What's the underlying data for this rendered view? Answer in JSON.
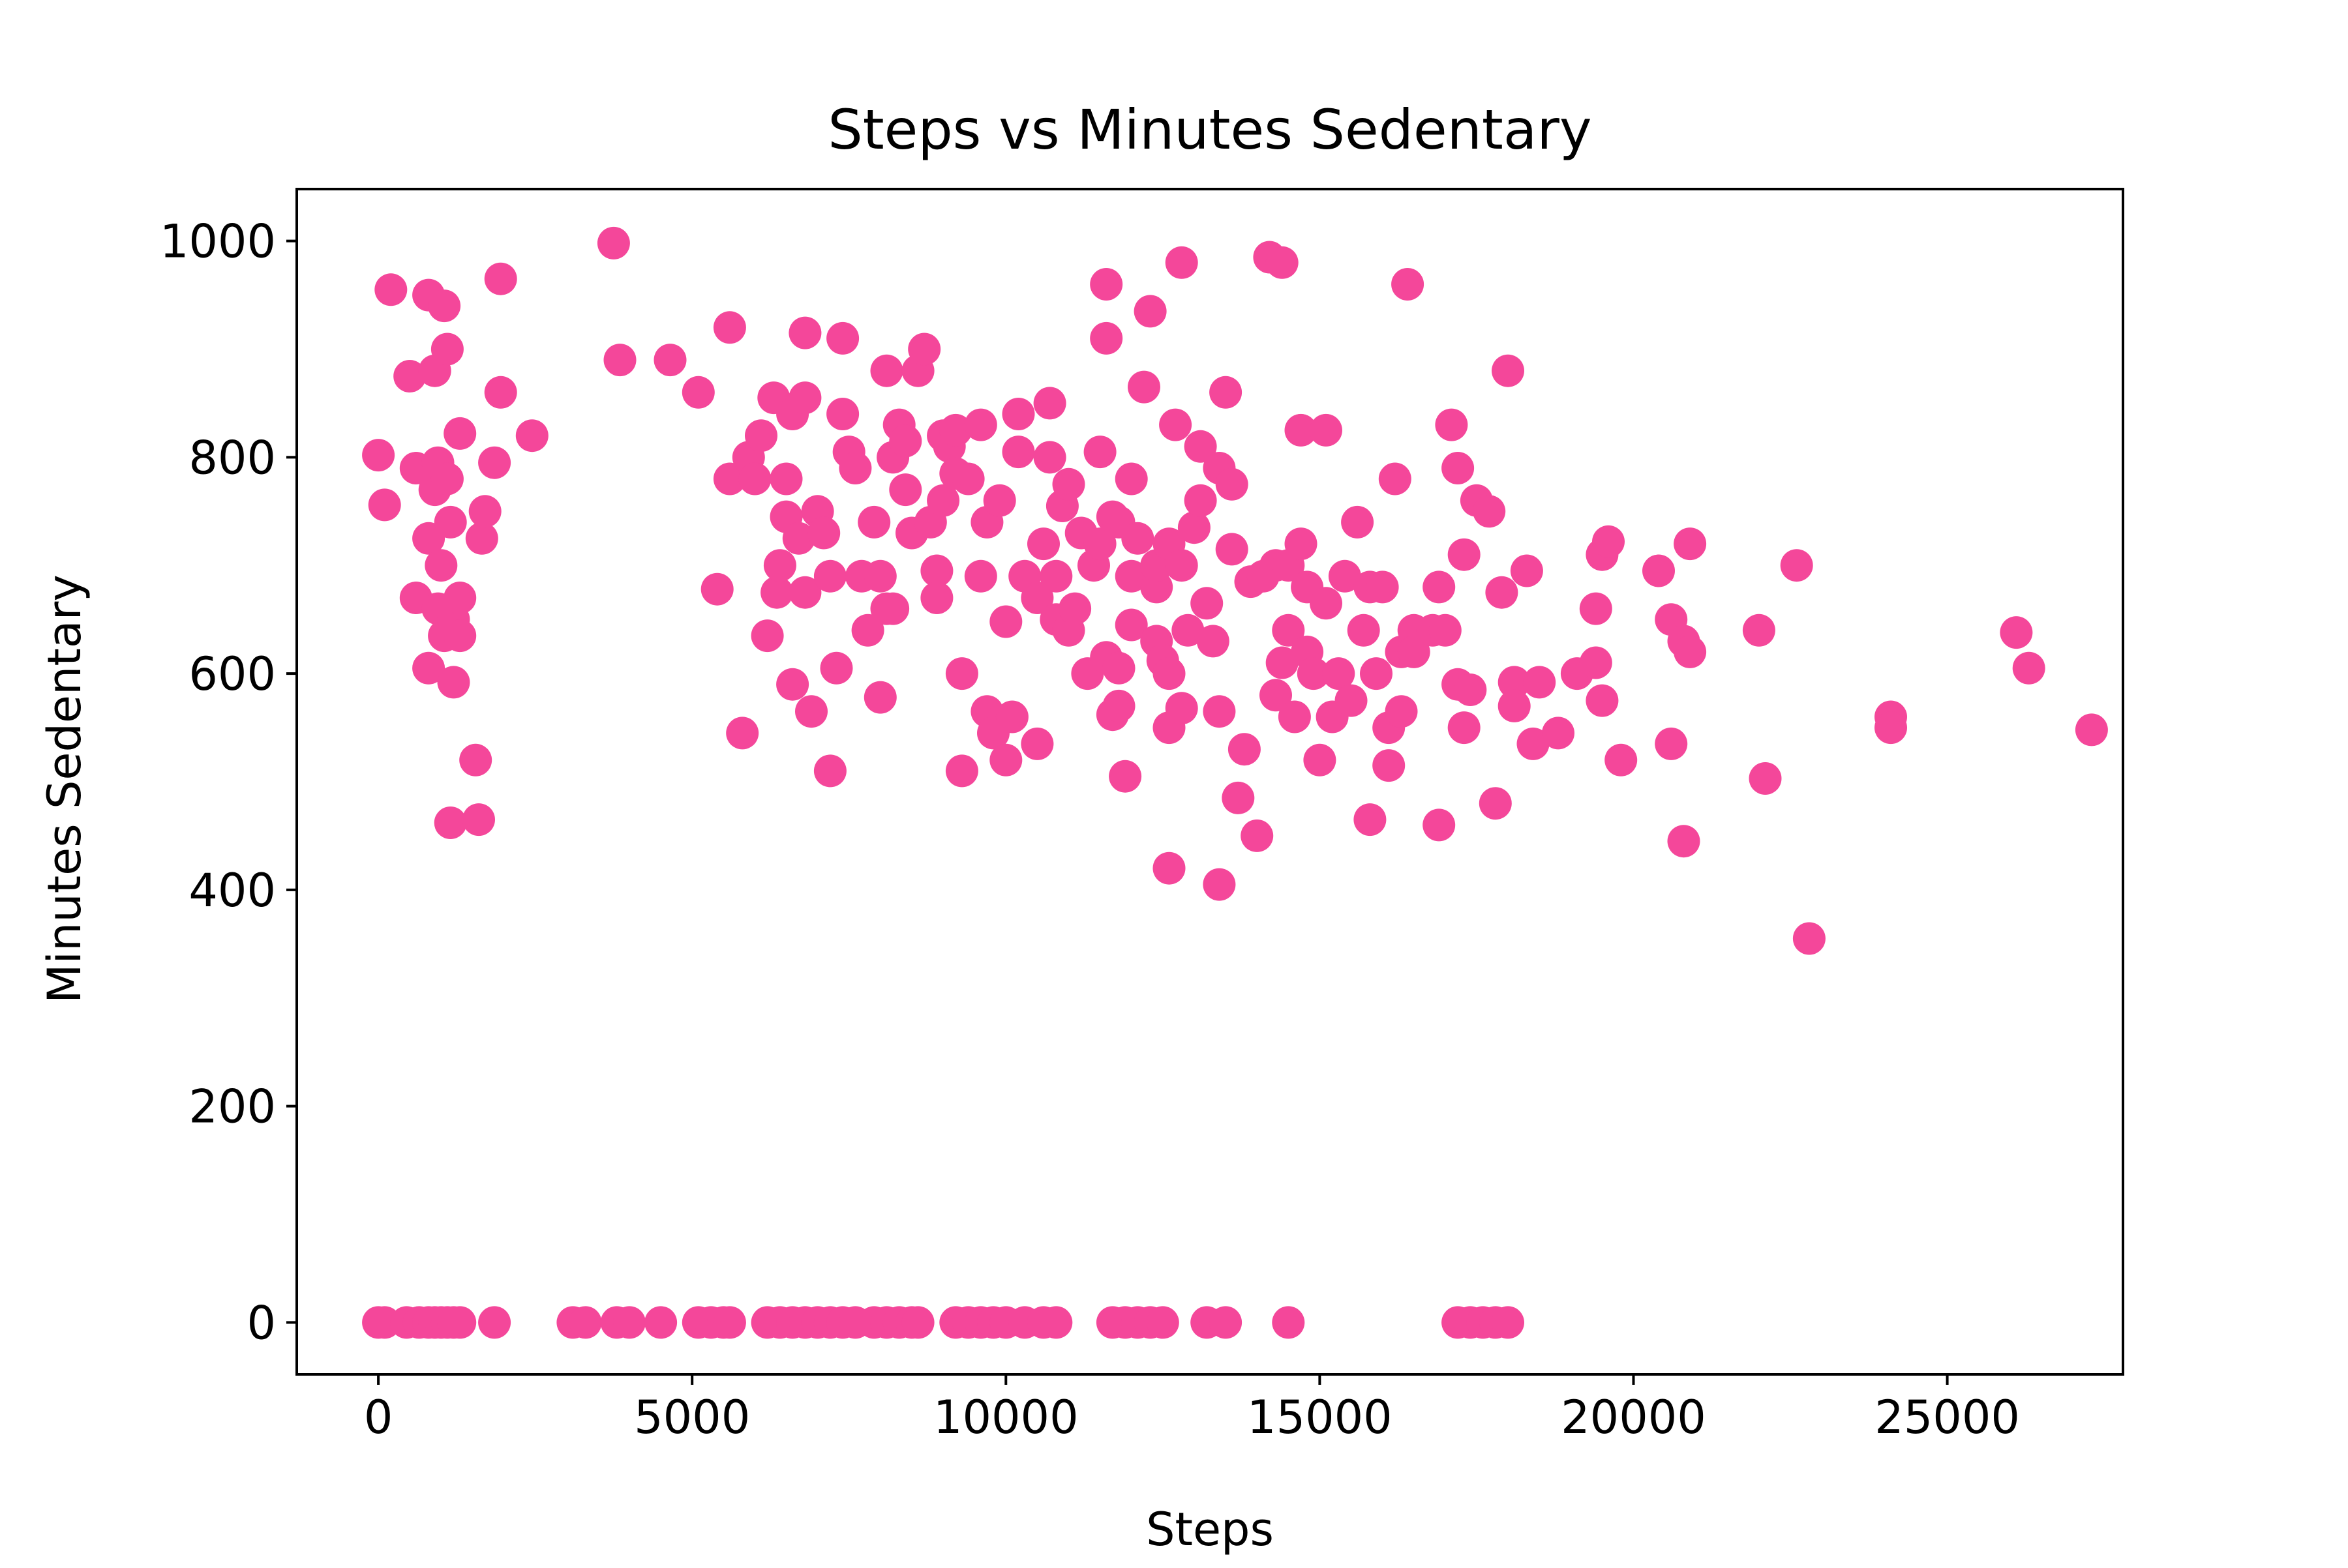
{
  "chart_data": {
    "type": "scatter",
    "title": "Steps vs Minutes Sedentary",
    "xlabel": "Steps",
    "ylabel": "Minutes Sedentary",
    "xlim": [
      -1300,
      27800
    ],
    "ylim": [
      -48,
      1048
    ],
    "xticks": [
      0,
      5000,
      10000,
      15000,
      20000,
      25000
    ],
    "yticks": [
      0,
      200,
      400,
      600,
      800,
      1000
    ],
    "grid": false,
    "legend": "none",
    "marker_color": "#f4479a",
    "series": [
      {
        "points": [
          [
            0,
            0
          ],
          [
            100,
            0
          ],
          [
            450,
            0
          ],
          [
            650,
            0
          ],
          [
            800,
            0
          ],
          [
            900,
            0
          ],
          [
            1000,
            0
          ],
          [
            1100,
            0
          ],
          [
            1200,
            0
          ],
          [
            1300,
            0
          ],
          [
            1850,
            0
          ],
          [
            3100,
            0
          ],
          [
            3300,
            0
          ],
          [
            3800,
            0
          ],
          [
            4000,
            0
          ],
          [
            4500,
            0
          ],
          [
            5100,
            0
          ],
          [
            5300,
            0
          ],
          [
            5500,
            0
          ],
          [
            5600,
            0
          ],
          [
            6200,
            0
          ],
          [
            6400,
            0
          ],
          [
            6600,
            0
          ],
          [
            6800,
            0
          ],
          [
            7000,
            0
          ],
          [
            7200,
            0
          ],
          [
            7400,
            0
          ],
          [
            7600,
            0
          ],
          [
            7900,
            0
          ],
          [
            8100,
            0
          ],
          [
            8300,
            0
          ],
          [
            8500,
            0
          ],
          [
            8600,
            0
          ],
          [
            9200,
            0
          ],
          [
            9400,
            0
          ],
          [
            9600,
            0
          ],
          [
            9800,
            0
          ],
          [
            10000,
            0
          ],
          [
            10300,
            0
          ],
          [
            10600,
            0
          ],
          [
            10800,
            0
          ],
          [
            11700,
            0
          ],
          [
            11900,
            0
          ],
          [
            12100,
            0
          ],
          [
            12300,
            0
          ],
          [
            12500,
            0
          ],
          [
            13200,
            0
          ],
          [
            13500,
            0
          ],
          [
            14500,
            0
          ],
          [
            17200,
            0
          ],
          [
            17400,
            0
          ],
          [
            17600,
            0
          ],
          [
            17800,
            0
          ],
          [
            18000,
            0
          ],
          [
            0,
            802
          ],
          [
            100,
            756
          ],
          [
            200,
            955
          ],
          [
            500,
            875
          ],
          [
            600,
            790
          ],
          [
            600,
            670
          ],
          [
            800,
            950
          ],
          [
            800,
            725
          ],
          [
            800,
            605
          ],
          [
            900,
            880
          ],
          [
            900,
            770
          ],
          [
            950,
            795
          ],
          [
            950,
            660
          ],
          [
            1000,
            700
          ],
          [
            1050,
            940
          ],
          [
            1050,
            635
          ],
          [
            1100,
            900
          ],
          [
            1100,
            780
          ],
          [
            1150,
            740
          ],
          [
            1200,
            650
          ],
          [
            1200,
            592
          ],
          [
            1150,
            462
          ],
          [
            1300,
            822
          ],
          [
            1300,
            670
          ],
          [
            1300,
            635
          ],
          [
            1550,
            520
          ],
          [
            1600,
            465
          ],
          [
            1650,
            725
          ],
          [
            1700,
            750
          ],
          [
            1850,
            795
          ],
          [
            1950,
            860
          ],
          [
            1950,
            965
          ],
          [
            2450,
            820
          ],
          [
            3750,
            998
          ],
          [
            3850,
            890
          ],
          [
            4650,
            890
          ],
          [
            5100,
            860
          ],
          [
            5400,
            678
          ],
          [
            5600,
            920
          ],
          [
            5600,
            780
          ],
          [
            5800,
            545
          ],
          [
            5900,
            800
          ],
          [
            6000,
            780
          ],
          [
            6100,
            820
          ],
          [
            6200,
            635
          ],
          [
            6300,
            855
          ],
          [
            6350,
            675
          ],
          [
            6400,
            700
          ],
          [
            6500,
            780
          ],
          [
            6500,
            745
          ],
          [
            6600,
            840
          ],
          [
            6600,
            590
          ],
          [
            6700,
            725
          ],
          [
            6800,
            855
          ],
          [
            6800,
            675
          ],
          [
            6800,
            915
          ],
          [
            6900,
            565
          ],
          [
            7000,
            750
          ],
          [
            7100,
            730
          ],
          [
            7200,
            690
          ],
          [
            7200,
            510
          ],
          [
            7300,
            605
          ],
          [
            7400,
            910
          ],
          [
            7400,
            840
          ],
          [
            7500,
            805
          ],
          [
            7600,
            790
          ],
          [
            7700,
            690
          ],
          [
            7800,
            640
          ],
          [
            7900,
            740
          ],
          [
            8000,
            578
          ],
          [
            8000,
            690
          ],
          [
            8100,
            880
          ],
          [
            8100,
            660
          ],
          [
            8200,
            800
          ],
          [
            8200,
            660
          ],
          [
            8300,
            830
          ],
          [
            8400,
            770
          ],
          [
            8400,
            815
          ],
          [
            8500,
            730
          ],
          [
            8600,
            880
          ],
          [
            8700,
            900
          ],
          [
            8800,
            740
          ],
          [
            8900,
            695
          ],
          [
            8900,
            670
          ],
          [
            9000,
            820
          ],
          [
            9000,
            760
          ],
          [
            9100,
            810
          ],
          [
            9200,
            785
          ],
          [
            9200,
            825
          ],
          [
            9300,
            510
          ],
          [
            9300,
            600
          ],
          [
            9400,
            780
          ],
          [
            9600,
            830
          ],
          [
            9600,
            690
          ],
          [
            9700,
            565
          ],
          [
            9700,
            740
          ],
          [
            9800,
            545
          ],
          [
            9900,
            760
          ],
          [
            10000,
            520
          ],
          [
            10000,
            648
          ],
          [
            10100,
            560
          ],
          [
            10200,
            840
          ],
          [
            10200,
            805
          ],
          [
            10300,
            690
          ],
          [
            10500,
            535
          ],
          [
            10500,
            670
          ],
          [
            10600,
            720
          ],
          [
            10700,
            850
          ],
          [
            10700,
            800
          ],
          [
            10800,
            650
          ],
          [
            10800,
            690
          ],
          [
            10900,
            755
          ],
          [
            11000,
            640
          ],
          [
            11000,
            775
          ],
          [
            11100,
            660
          ],
          [
            11200,
            730
          ],
          [
            11300,
            600
          ],
          [
            11400,
            700
          ],
          [
            11500,
            805
          ],
          [
            11500,
            720
          ],
          [
            11600,
            615
          ],
          [
            11600,
            960
          ],
          [
            11600,
            910
          ],
          [
            11700,
            562
          ],
          [
            11700,
            745
          ],
          [
            11800,
            740
          ],
          [
            11800,
            605
          ],
          [
            11800,
            570
          ],
          [
            11900,
            505
          ],
          [
            12000,
            780
          ],
          [
            12000,
            690
          ],
          [
            12000,
            645
          ],
          [
            12100,
            725
          ],
          [
            12200,
            865
          ],
          [
            12300,
            935
          ],
          [
            12400,
            680
          ],
          [
            12400,
            630
          ],
          [
            12400,
            700
          ],
          [
            12500,
            612
          ],
          [
            12600,
            600
          ],
          [
            12600,
            720
          ],
          [
            12600,
            550
          ],
          [
            12600,
            420
          ],
          [
            12700,
            830
          ],
          [
            12800,
            980
          ],
          [
            12800,
            700
          ],
          [
            12800,
            568
          ],
          [
            12900,
            640
          ],
          [
            13000,
            735
          ],
          [
            13100,
            810
          ],
          [
            13100,
            760
          ],
          [
            13200,
            665
          ],
          [
            13300,
            630
          ],
          [
            13400,
            790
          ],
          [
            13400,
            565
          ],
          [
            13400,
            405
          ],
          [
            13500,
            860
          ],
          [
            13600,
            775
          ],
          [
            13600,
            715
          ],
          [
            13700,
            485
          ],
          [
            13800,
            530
          ],
          [
            13900,
            685
          ],
          [
            14000,
            450
          ],
          [
            14100,
            690
          ],
          [
            14200,
            985
          ],
          [
            14300,
            580
          ],
          [
            14300,
            700
          ],
          [
            14400,
            980
          ],
          [
            14400,
            610
          ],
          [
            14500,
            640
          ],
          [
            14500,
            700
          ],
          [
            14600,
            560
          ],
          [
            14700,
            825
          ],
          [
            14700,
            720
          ],
          [
            14800,
            680
          ],
          [
            14800,
            620
          ],
          [
            14900,
            600
          ],
          [
            15000,
            520
          ],
          [
            15100,
            825
          ],
          [
            15100,
            665
          ],
          [
            15200,
            560
          ],
          [
            15300,
            600
          ],
          [
            15400,
            690
          ],
          [
            15500,
            575
          ],
          [
            15600,
            740
          ],
          [
            15700,
            640
          ],
          [
            15800,
            465
          ],
          [
            15800,
            680
          ],
          [
            15900,
            600
          ],
          [
            16000,
            680
          ],
          [
            16100,
            515
          ],
          [
            16100,
            550
          ],
          [
            16200,
            780
          ],
          [
            16300,
            620
          ],
          [
            16300,
            565
          ],
          [
            16400,
            960
          ],
          [
            16500,
            640
          ],
          [
            16500,
            620
          ],
          [
            16800,
            640
          ],
          [
            16900,
            680
          ],
          [
            16900,
            460
          ],
          [
            17000,
            640
          ],
          [
            17100,
            830
          ],
          [
            17200,
            790
          ],
          [
            17200,
            590
          ],
          [
            17300,
            550
          ],
          [
            17300,
            710
          ],
          [
            17400,
            585
          ],
          [
            17500,
            760
          ],
          [
            17700,
            750
          ],
          [
            17800,
            480
          ],
          [
            17900,
            675
          ],
          [
            18000,
            880
          ],
          [
            18100,
            592
          ],
          [
            18100,
            570
          ],
          [
            18300,
            695
          ],
          [
            18400,
            535
          ],
          [
            18500,
            592
          ],
          [
            18800,
            545
          ],
          [
            19100,
            600
          ],
          [
            19400,
            610
          ],
          [
            19400,
            660
          ],
          [
            19500,
            575
          ],
          [
            19500,
            710
          ],
          [
            19600,
            722
          ],
          [
            19800,
            520
          ],
          [
            20400,
            695
          ],
          [
            20600,
            535
          ],
          [
            20600,
            650
          ],
          [
            20800,
            630
          ],
          [
            20800,
            445
          ],
          [
            20900,
            620
          ],
          [
            20900,
            720
          ],
          [
            22000,
            640
          ],
          [
            22100,
            503
          ],
          [
            22800,
            355
          ],
          [
            22600,
            700
          ],
          [
            24100,
            560
          ],
          [
            24100,
            550
          ],
          [
            26100,
            638
          ],
          [
            26300,
            605
          ],
          [
            27300,
            548
          ]
        ]
      }
    ]
  }
}
